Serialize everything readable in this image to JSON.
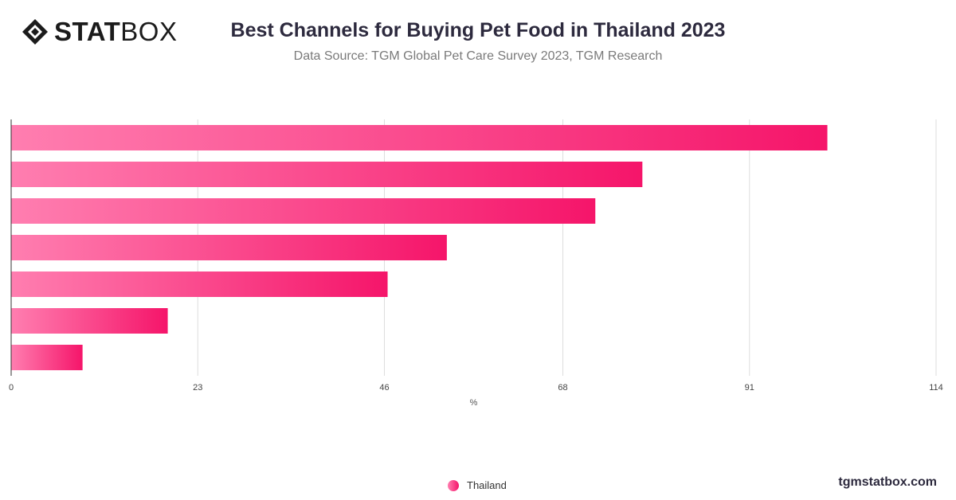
{
  "brand": {
    "logo_bold": "STAT",
    "logo_light": "BOX",
    "website": "tgmstatbox.com"
  },
  "header": {
    "title": "Best Channels for Buying Pet Food in Thailand 2023",
    "subtitle": "Data Source: TGM Global Pet Care Survey 2023, TGM Research"
  },
  "colors": {
    "bar_start": "#ff7eb0",
    "bar_end": "#f5156a",
    "grid": "#dddddd",
    "axis": "#333333"
  },
  "chart_data": {
    "type": "bar",
    "orientation": "horizontal",
    "categories": [
      "",
      "",
      "",
      "",
      "",
      "",
      ""
    ],
    "series": [
      {
        "name": "Thailand",
        "values": [
          100.6,
          77.8,
          72.0,
          53.7,
          46.4,
          19.3,
          8.8
        ]
      }
    ],
    "xlabel": "%",
    "ylabel": "",
    "xlim": [
      0,
      114
    ],
    "xticks": [
      "0",
      "23",
      "46",
      "68",
      "91",
      "114"
    ],
    "xtick_values": [
      0,
      23,
      46,
      68,
      91,
      114
    ],
    "grid": true,
    "legend": "bottom-center"
  }
}
